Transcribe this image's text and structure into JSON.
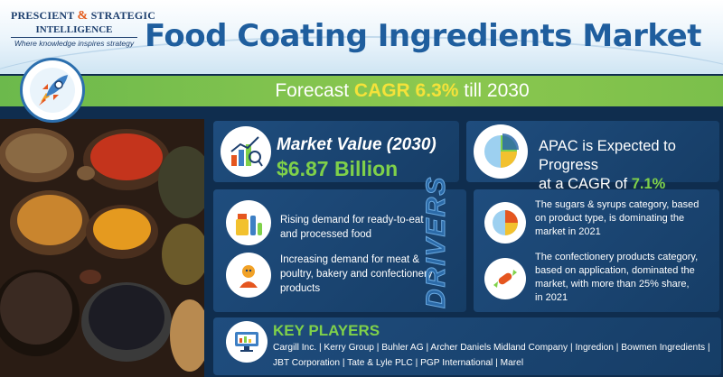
{
  "brand": {
    "line1_a": "PRESCIENT",
    "line1_amp": "&",
    "line1_b": "STRATEGIC",
    "line2": "INTELLIGENCE",
    "tagline": "Where knowledge inspires strategy"
  },
  "title": "Food Coating Ingredients Market",
  "cagr": {
    "prefix": "Forecast",
    "highlight": "CAGR 6.3%",
    "suffix": "till 2030"
  },
  "market_value": {
    "label": "Market Value (2030)",
    "value": "$6.87 Billion"
  },
  "apac": {
    "line1": "APAC is Expected to Progress",
    "line2_prefix": "at a CAGR of",
    "line2_highlight": "7.1%"
  },
  "drivers": {
    "heading": "DRIVERS",
    "items": [
      {
        "line1": "Rising demand for ready-to-eat",
        "line2": "and processed food"
      },
      {
        "line1": "Increasing demand for meat &",
        "line2": "poultry, bakery and confectionery",
        "line3": "products"
      }
    ]
  },
  "facts": [
    {
      "line1": "The sugars & syrups category, based",
      "line2": "on product type, is dominating the",
      "line3": "market in 2021"
    },
    {
      "line1": "The confectionery products category,",
      "line2": "based on application, dominated the",
      "line3": "market, with more than 25% share,",
      "line4": "in 2021"
    }
  ],
  "key_players": {
    "heading": "KEY PLAYERS",
    "line1": "Cargill Inc. | Kerry Group | Buhler AG | Archer Daniels Midland Company | Ingredion | Bowmen Ingredients |",
    "line2": "JBT Corporation | Tate & Lyle PLC | PGP International | Marel"
  },
  "colors": {
    "title_blue": "#1f5e9e",
    "band_green": "#8cc84f",
    "accent_yellow": "#f4e23a",
    "accent_green": "#7fd14a",
    "panel_navy": "#163d66"
  },
  "icons": [
    "rocket-icon",
    "market-chart-icon",
    "pie-chart-icon",
    "ready-to-eat-food-icon",
    "meat-bakery-icon",
    "sugar-pie-icon",
    "candy-icon",
    "key-players-monitor-icon"
  ]
}
